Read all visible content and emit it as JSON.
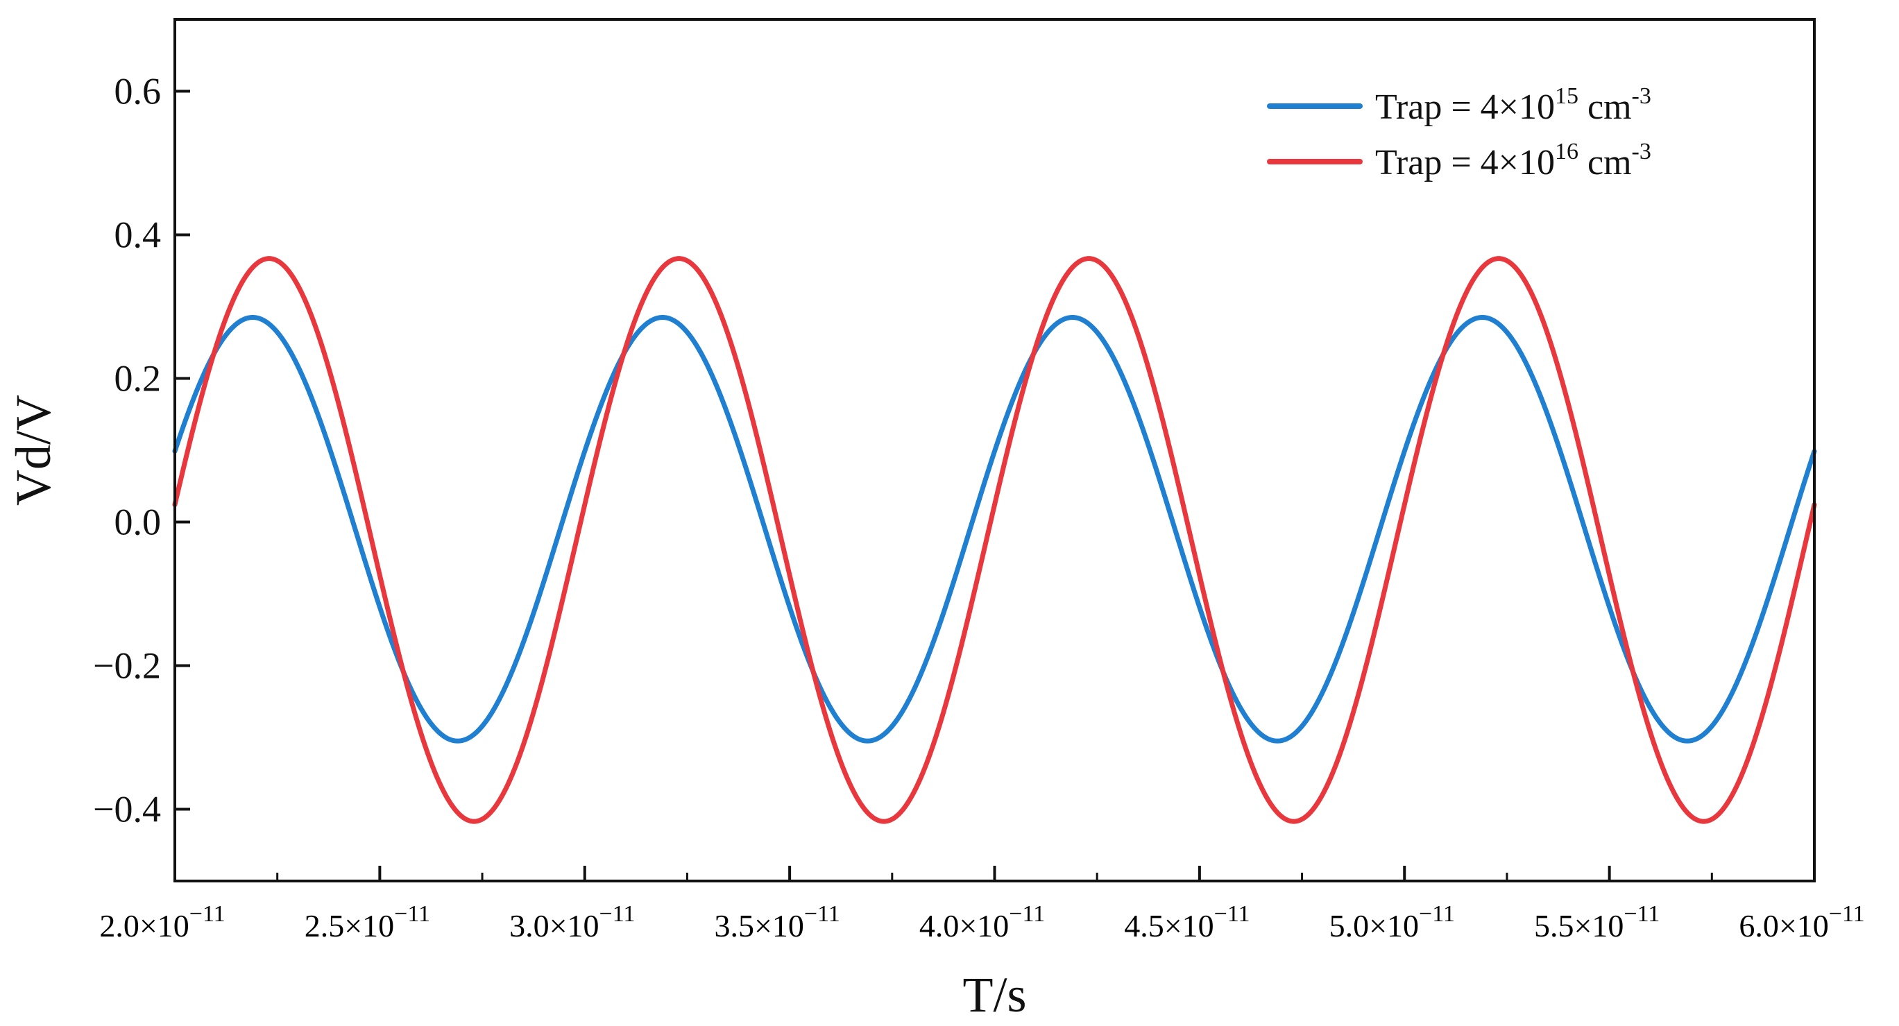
{
  "chart_data": {
    "type": "line",
    "title": "",
    "xlabel": "T/s",
    "ylabel": "Vd/V",
    "xlim": [
      2e-11,
      6e-11
    ],
    "ylim": [
      -0.5,
      0.7
    ],
    "grid": false,
    "legend_position": "top-right",
    "yticks": [
      {
        "value": 0.6,
        "label": "0.6"
      },
      {
        "value": 0.4,
        "label": "0.4"
      },
      {
        "value": 0.2,
        "label": "0.2"
      },
      {
        "value": 0.0,
        "label": "0.0"
      },
      {
        "value": -0.2,
        "label": "−0.2"
      },
      {
        "value": -0.4,
        "label": "−0.4"
      }
    ],
    "xticks": [
      {
        "value": 2e-11,
        "mantissa": "2.0×10",
        "exponent": "−11"
      },
      {
        "value": 2.5e-11,
        "mantissa": "2.5×10",
        "exponent": "−11"
      },
      {
        "value": 3e-11,
        "mantissa": "3.0×10",
        "exponent": "−11"
      },
      {
        "value": 3.5e-11,
        "mantissa": "3.5×10",
        "exponent": "−11"
      },
      {
        "value": 4e-11,
        "mantissa": "4.0×10",
        "exponent": "−11"
      },
      {
        "value": 4.5e-11,
        "mantissa": "4.5×10",
        "exponent": "−11"
      },
      {
        "value": 5e-11,
        "mantissa": "5.0×10",
        "exponent": "−11"
      },
      {
        "value": 5.5e-11,
        "mantissa": "5.5×10",
        "exponent": "−11"
      },
      {
        "value": 6e-11,
        "mantissa": "6.0×10",
        "exponent": "−11"
      }
    ],
    "series": [
      {
        "name": "Trap = 4×10^15 cm^-3",
        "label_prefix": "Trap = 4×10",
        "label_exponent": "15",
        "label_unit": " cm",
        "label_unit_exponent": "-3",
        "color": "#1f7fd0",
        "model": "sine",
        "period": 1e-11,
        "offset": -0.01,
        "amplitude": 0.295,
        "phase_zero_crossing": 1.94e-11,
        "peak_value": 0.285,
        "trough_value": -0.305
      },
      {
        "name": "Trap = 4×10^16 cm^-3",
        "label_prefix": "Trap = 4×10",
        "label_exponent": "16",
        "label_unit": " cm",
        "label_unit_exponent": "-3",
        "color": "#e8383d",
        "model": "sine",
        "period": 1e-11,
        "offset": -0.025,
        "amplitude": 0.392,
        "phase_zero_crossing": 1.98e-11,
        "peak_value": 0.367,
        "trough_value": -0.417
      }
    ]
  }
}
